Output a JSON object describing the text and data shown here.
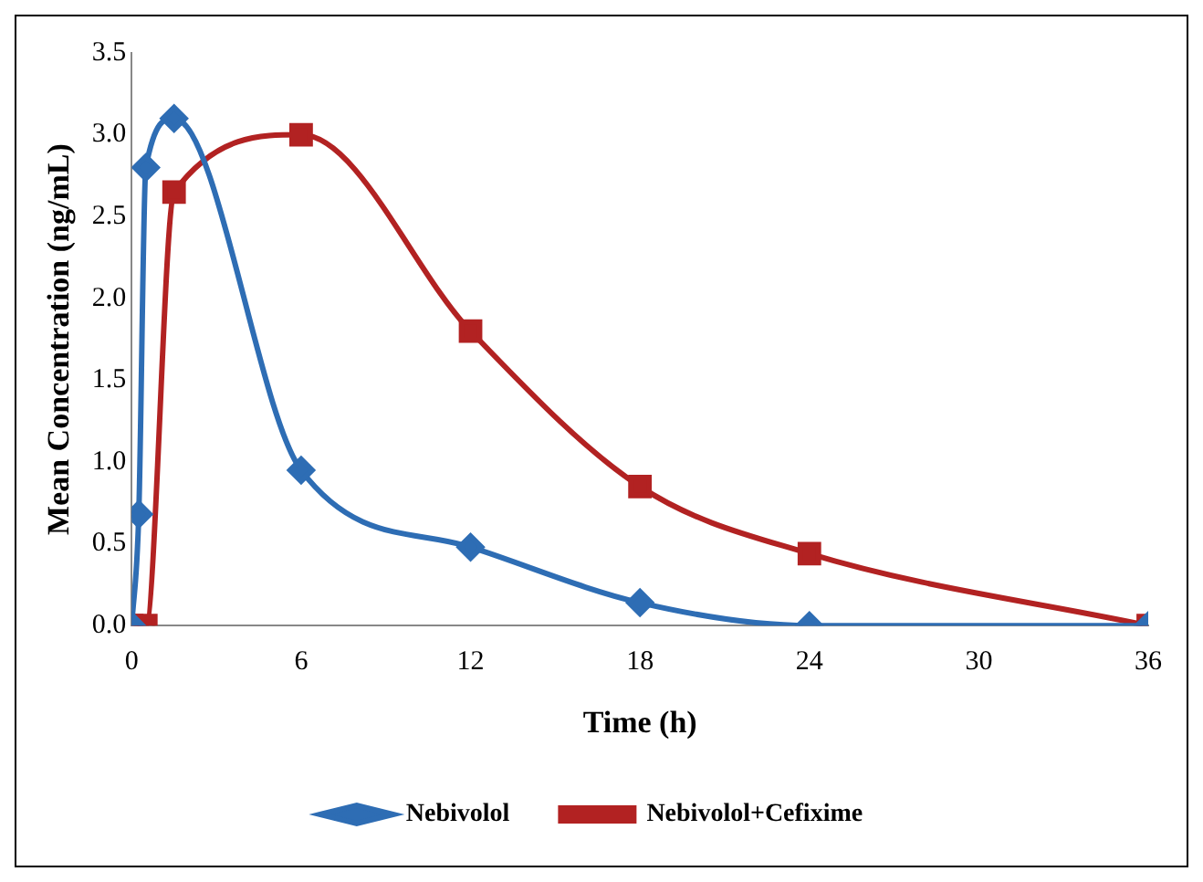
{
  "chart_data": {
    "type": "line",
    "xlabel": "Time (h)",
    "ylabel": "Mean Concentration (ng/mL)",
    "series": [
      {
        "name": "Nebivolol",
        "color": "#2e6db4",
        "marker": "diamond",
        "x": [
          0,
          0.25,
          0.5,
          1.5,
          6,
          12,
          18,
          24,
          36
        ],
        "values": [
          0,
          0.68,
          2.8,
          3.1,
          0.95,
          0.48,
          0.14,
          0,
          0
        ]
      },
      {
        "name": "Nebivolol+Cefixime",
        "color": "#b22222",
        "marker": "square",
        "x": [
          0,
          0.5,
          1.5,
          6,
          12,
          18,
          24,
          36
        ],
        "values": [
          0,
          0,
          2.65,
          3.0,
          1.8,
          0.85,
          0.44,
          0
        ]
      }
    ],
    "xlim": [
      0,
      36
    ],
    "xticks": [
      0,
      6,
      12,
      18,
      24,
      30,
      36
    ],
    "ylim": [
      0,
      3.5
    ],
    "yticks": [
      {
        "value": 0,
        "label": "0.0"
      },
      {
        "value": 0.5,
        "label": "0.5"
      },
      {
        "value": 1,
        "label": "1.0"
      },
      {
        "value": 1.5,
        "label": "1.5"
      },
      {
        "value": 2,
        "label": "2.0"
      },
      {
        "value": 2.5,
        "label": "2.5"
      },
      {
        "value": 3,
        "label": "3.0"
      },
      {
        "value": 3.5,
        "label": "3.5"
      }
    ],
    "grid": false,
    "legend": "bottom",
    "line_style": "solid"
  }
}
